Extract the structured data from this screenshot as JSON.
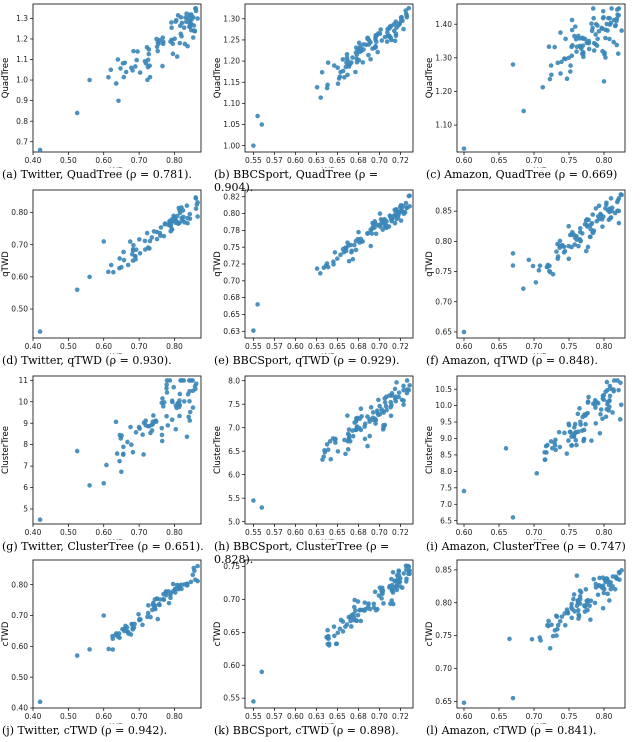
{
  "chart_data": [
    {
      "type": "scatter",
      "caption": "(a) Twitter, QuadTree (ρ = 0.781).",
      "xlabel": "WD",
      "ylabel": "QuadTree",
      "xlim": [
        0.4,
        0.875
      ],
      "ylim": [
        0.65,
        1.37
      ],
      "xticks": [
        0.4,
        0.5,
        0.6,
        0.7,
        0.8
      ],
      "yticks": [
        0.7,
        0.8,
        0.9,
        1.0,
        1.1,
        1.2,
        1.3
      ],
      "color": "#3a86b8",
      "rho": 0.781,
      "n": 85,
      "seed": 1,
      "points": [
        [
          0.42,
          0.66
        ],
        [
          0.525,
          0.84
        ],
        [
          0.56,
          1.0
        ],
        [
          0.62,
          1.05
        ],
        [
          0.64,
          1.1
        ]
      ]
    },
    {
      "type": "scatter",
      "caption": "(b) BBCSport, QuadTree (ρ = 0.904).",
      "xlabel": "WD",
      "ylabel": "QuadTree",
      "xlim": [
        0.54,
        0.74
      ],
      "ylim": [
        0.985,
        1.335
      ],
      "xticks": [
        0.55,
        0.575,
        0.6,
        0.625,
        0.65,
        0.675,
        0.7,
        0.725
      ],
      "yticks": [
        1.0,
        1.05,
        1.1,
        1.15,
        1.2,
        1.25,
        1.3
      ],
      "color": "#3a86b8",
      "rho": 0.904,
      "n": 100,
      "seed": 2,
      "points": [
        [
          0.55,
          1.0
        ],
        [
          0.555,
          1.07
        ],
        [
          0.56,
          1.05
        ],
        [
          0.735,
          1.325
        ]
      ]
    },
    {
      "type": "scatter",
      "caption": "(c) Amazon, QuadTree (ρ = 0.669)",
      "xlabel": "WD",
      "ylabel": "QuadTree",
      "xlim": [
        0.59,
        0.83
      ],
      "ylim": [
        1.02,
        1.46
      ],
      "xticks": [
        0.6,
        0.65,
        0.7,
        0.75,
        0.8
      ],
      "yticks": [
        1.1,
        1.2,
        1.3,
        1.4
      ],
      "color": "#3a86b8",
      "rho": 0.669,
      "n": 95,
      "seed": 3,
      "points": [
        [
          0.6,
          1.03
        ],
        [
          0.67,
          1.28
        ],
        [
          0.8,
          1.23
        ]
      ]
    },
    {
      "type": "scatter",
      "caption": "(d) Twitter, qTWD (ρ = 0.930).",
      "xlabel": "WD",
      "ylabel": "qTWD",
      "xlim": [
        0.4,
        0.875
      ],
      "ylim": [
        0.41,
        0.87
      ],
      "xticks": [
        0.4,
        0.5,
        0.6,
        0.7,
        0.8
      ],
      "yticks": [
        0.5,
        0.6,
        0.7,
        0.8
      ],
      "color": "#3a86b8",
      "rho": 0.93,
      "n": 85,
      "seed": 4,
      "points": [
        [
          0.42,
          0.43
        ],
        [
          0.525,
          0.56
        ],
        [
          0.56,
          0.6
        ],
        [
          0.6,
          0.71
        ],
        [
          0.65,
          0.63
        ]
      ]
    },
    {
      "type": "scatter",
      "caption": "(e) BBCSport, qTWD (ρ = 0.929).",
      "xlabel": "WD",
      "ylabel": "qTWD",
      "xlim": [
        0.54,
        0.74
      ],
      "ylim": [
        0.615,
        0.835
      ],
      "xticks": [
        0.55,
        0.575,
        0.6,
        0.625,
        0.65,
        0.675,
        0.7,
        0.725
      ],
      "yticks": [
        0.625,
        0.65,
        0.675,
        0.7,
        0.725,
        0.75,
        0.775,
        0.8,
        0.825
      ],
      "color": "#3a86b8",
      "rho": 0.929,
      "n": 100,
      "seed": 5,
      "points": [
        [
          0.55,
          0.626
        ],
        [
          0.555,
          0.665
        ],
        [
          0.735,
          0.826
        ]
      ]
    },
    {
      "type": "scatter",
      "caption": "(f) Amazon, qTWD (ρ = 0.848).",
      "xlabel": "WD",
      "ylabel": "qTWD",
      "xlim": [
        0.59,
        0.83
      ],
      "ylim": [
        0.64,
        0.885
      ],
      "xticks": [
        0.6,
        0.65,
        0.7,
        0.75,
        0.8
      ],
      "yticks": [
        0.65,
        0.7,
        0.75,
        0.8,
        0.85
      ],
      "color": "#3a86b8",
      "rho": 0.848,
      "n": 95,
      "seed": 6,
      "points": [
        [
          0.6,
          0.65
        ],
        [
          0.67,
          0.76
        ],
        [
          0.67,
          0.78
        ]
      ]
    },
    {
      "type": "scatter",
      "caption": "(g) Twitter, ClusterTree (ρ = 0.651).",
      "xlabel": "WD",
      "ylabel": "ClusterTree",
      "xlim": [
        0.4,
        0.875
      ],
      "ylim": [
        4.3,
        11.2
      ],
      "xticks": [
        0.4,
        0.5,
        0.6,
        0.7,
        0.8
      ],
      "yticks": [
        5,
        6,
        7,
        8,
        9,
        10,
        11
      ],
      "color": "#3a86b8",
      "rho": 0.651,
      "n": 85,
      "seed": 7,
      "points": [
        [
          0.42,
          4.5
        ],
        [
          0.525,
          7.7
        ],
        [
          0.56,
          6.1
        ],
        [
          0.6,
          6.2
        ]
      ]
    },
    {
      "type": "scatter",
      "caption": "(h) BBCSport, ClusterTree (ρ = 0.828).",
      "xlabel": "WD",
      "ylabel": "ClusterTree",
      "xlim": [
        0.54,
        0.74
      ],
      "ylim": [
        4.95,
        8.1
      ],
      "xticks": [
        0.55,
        0.575,
        0.6,
        0.625,
        0.65,
        0.675,
        0.7,
        0.725
      ],
      "yticks": [
        5.0,
        5.5,
        6.0,
        6.5,
        7.0,
        7.5,
        8.0
      ],
      "color": "#3a86b8",
      "rho": 0.828,
      "n": 100,
      "seed": 8,
      "points": [
        [
          0.55,
          5.45
        ],
        [
          0.56,
          5.3
        ],
        [
          0.735,
          7.8
        ]
      ]
    },
    {
      "type": "scatter",
      "caption": "(i) Amazon, ClusterTree (ρ = 0.747)",
      "xlabel": "WD",
      "ylabel": "ClusterTree",
      "xlim": [
        0.59,
        0.83
      ],
      "ylim": [
        6.4,
        10.9
      ],
      "xticks": [
        0.6,
        0.65,
        0.7,
        0.75,
        0.8
      ],
      "yticks": [
        6.5,
        7.0,
        7.5,
        8.0,
        8.5,
        9.0,
        9.5,
        10.0,
        10.5
      ],
      "color": "#3a86b8",
      "rho": 0.747,
      "n": 95,
      "seed": 9,
      "points": [
        [
          0.6,
          7.4
        ],
        [
          0.66,
          8.7
        ],
        [
          0.67,
          6.6
        ]
      ]
    },
    {
      "type": "scatter",
      "caption": "(j) Twitter, cTWD (ρ = 0.942).",
      "xlabel": "WD",
      "ylabel": "cTWD",
      "xlim": [
        0.4,
        0.875
      ],
      "ylim": [
        0.4,
        0.88
      ],
      "xticks": [
        0.4,
        0.5,
        0.6,
        0.7,
        0.8
      ],
      "yticks": [
        0.4,
        0.5,
        0.6,
        0.7,
        0.8
      ],
      "color": "#3a86b8",
      "rho": 0.942,
      "n": 85,
      "seed": 10,
      "points": [
        [
          0.42,
          0.42
        ],
        [
          0.525,
          0.57
        ],
        [
          0.56,
          0.59
        ],
        [
          0.6,
          0.7
        ]
      ]
    },
    {
      "type": "scatter",
      "caption": "(k) BBCSport, cTWD (ρ = 0.898).",
      "xlabel": "WD",
      "ylabel": "cTWD",
      "xlim": [
        0.54,
        0.74
      ],
      "ylim": [
        0.535,
        0.76
      ],
      "xticks": [
        0.55,
        0.575,
        0.6,
        0.625,
        0.65,
        0.675,
        0.7,
        0.725
      ],
      "yticks": [
        0.55,
        0.6,
        0.65,
        0.7,
        0.75
      ],
      "color": "#3a86b8",
      "rho": 0.898,
      "n": 100,
      "seed": 11,
      "points": [
        [
          0.55,
          0.545
        ],
        [
          0.56,
          0.59
        ],
        [
          0.735,
          0.75
        ]
      ]
    },
    {
      "type": "scatter",
      "caption": "(l) Amazon, cTWD (ρ = 0.841).",
      "xlabel": "WD",
      "ylabel": "cTWD",
      "xlim": [
        0.59,
        0.83
      ],
      "ylim": [
        0.64,
        0.865
      ],
      "xticks": [
        0.6,
        0.65,
        0.7,
        0.75,
        0.8
      ],
      "yticks": [
        0.65,
        0.7,
        0.75,
        0.8,
        0.85
      ],
      "color": "#3a86b8",
      "rho": 0.841,
      "n": 95,
      "seed": 12,
      "points": [
        [
          0.6,
          0.648
        ],
        [
          0.665,
          0.745
        ],
        [
          0.67,
          0.655
        ]
      ]
    }
  ]
}
